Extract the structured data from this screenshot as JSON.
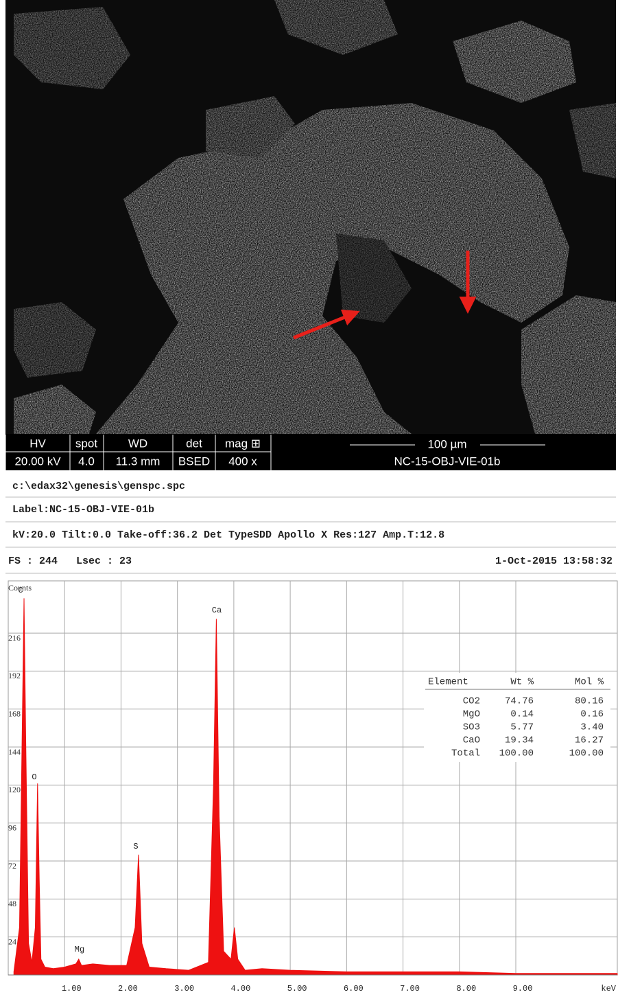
{
  "sem_info": {
    "labels": [
      "HV",
      "spot",
      "WD",
      "det",
      "mag ⊞"
    ],
    "values": [
      "20.00 kV",
      "4.0",
      "11.3 mm",
      "BSED",
      "400 x"
    ],
    "scale_bar": "100 µm",
    "sample": "NC-15-OBJ-VIE-01b"
  },
  "header": {
    "file": "c:\\edax32\\genesis\\genspc.spc",
    "label": "Label:NC-15-OBJ-VIE-01b",
    "params": "kV:20.0 Tilt:0.0 Take-off:36.2   Det TypeSDD Apollo X Res:127 Amp.T:12.8",
    "fs": "FS : 244   Lsec : 23",
    "date": "1-Oct-2015 13:58:32"
  },
  "results_table": {
    "columns": [
      "Element",
      "Wt %",
      "Mol %"
    ],
    "rows": [
      [
        "CO2",
        "74.76",
        "80.16"
      ],
      [
        "MgO",
        "0.14",
        "0.16"
      ],
      [
        "SO3",
        "5.77",
        "3.40"
      ],
      [
        "CaO",
        "19.34",
        "16.27"
      ],
      [
        "Total",
        "100.00",
        "100.00"
      ]
    ]
  },
  "chart_data": {
    "type": "area",
    "y_label": "Counts",
    "x_label": "keV",
    "color": "#ee1111",
    "peak_labels": [
      "C",
      "O",
      "Mg",
      "S",
      "Ca"
    ],
    "x": [
      0.1,
      0.2,
      0.25,
      0.28,
      0.31,
      0.36,
      0.42,
      0.48,
      0.52,
      0.55,
      0.58,
      0.65,
      0.8,
      1.0,
      1.2,
      1.25,
      1.3,
      1.5,
      1.8,
      2.1,
      2.25,
      2.31,
      2.37,
      2.5,
      2.8,
      3.2,
      3.55,
      3.64,
      3.69,
      3.74,
      3.82,
      3.95,
      4.01,
      4.07,
      4.2,
      4.5,
      5.0,
      6.0,
      7.0,
      8.0,
      9.0,
      10.0,
      10.8
    ],
    "values": [
      2,
      30,
      160,
      238,
      150,
      20,
      8,
      30,
      121,
      60,
      10,
      5,
      4,
      5,
      7,
      10,
      6,
      7,
      6,
      6,
      30,
      76,
      20,
      5,
      4,
      3,
      8,
      120,
      225,
      100,
      15,
      10,
      30,
      10,
      3,
      4,
      3,
      2,
      2,
      2,
      1,
      1,
      1
    ],
    "xlim": [
      0,
      10.8
    ],
    "ylim": [
      0,
      249
    ],
    "xticks": [
      {
        "value": 1,
        "label": "1.00"
      },
      {
        "value": 2,
        "label": "2.00"
      },
      {
        "value": 3,
        "label": "3.00"
      },
      {
        "value": 4,
        "label": "4.00"
      },
      {
        "value": 5,
        "label": "5.00"
      },
      {
        "value": 6,
        "label": "6.00"
      },
      {
        "value": 7,
        "label": "7.00"
      },
      {
        "value": 8,
        "label": "8.00"
      },
      {
        "value": 9,
        "label": "9.00"
      }
    ],
    "yticks": [
      24,
      48,
      72,
      96,
      120,
      144,
      168,
      192,
      216
    ],
    "grid": true
  }
}
